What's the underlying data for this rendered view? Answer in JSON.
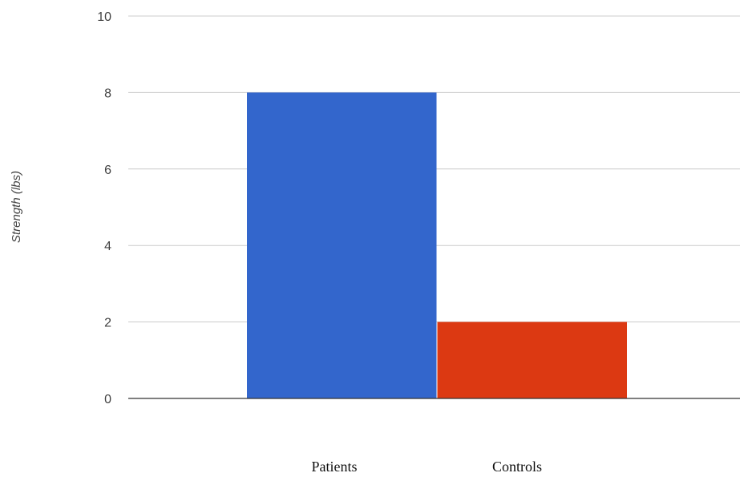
{
  "chart_data": {
    "type": "bar",
    "ylabel": "Strength (lbs)",
    "xlabel": "",
    "ylim": [
      0,
      10
    ],
    "yticks": [
      0,
      2,
      4,
      6,
      8,
      10
    ],
    "grid": true,
    "categories": [
      "Patients",
      "Controls"
    ],
    "values": [
      8,
      2
    ],
    "colors": [
      "#3366cc",
      "#dc3912"
    ]
  }
}
